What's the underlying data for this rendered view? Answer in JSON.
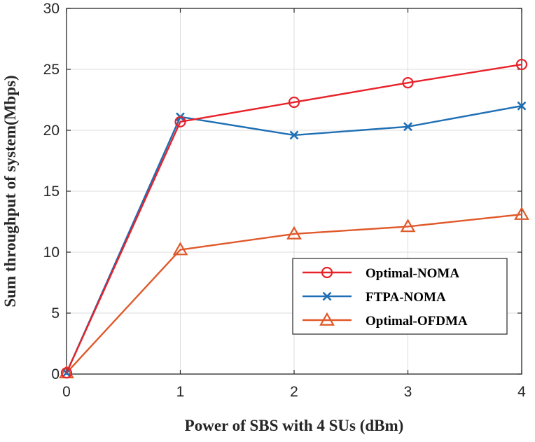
{
  "chart_data": {
    "type": "line",
    "title": "",
    "xlabel": "Power of SBS with 4 SUs (dBm)",
    "ylabel": "Sum throughput of system(Mbps)",
    "x": [
      0,
      1,
      2,
      3,
      4
    ],
    "xlim": [
      0,
      4
    ],
    "ylim": [
      0,
      30
    ],
    "xticks": [
      "0",
      "1",
      "2",
      "3",
      "4"
    ],
    "yticks": [
      "0",
      "5",
      "10",
      "15",
      "20",
      "25",
      "30"
    ],
    "grid": true,
    "legend_position": "lower-right",
    "series": [
      {
        "name": "Optimal-NOMA",
        "color": "#e8222a",
        "marker": "circle",
        "values": [
          0.1,
          20.7,
          22.3,
          23.9,
          25.4
        ]
      },
      {
        "name": "FTPA-NOMA",
        "color": "#1f6fb5",
        "marker": "x",
        "values": [
          0.1,
          21.1,
          19.6,
          20.3,
          22.0
        ]
      },
      {
        "name": "Optimal-OFDMA",
        "color": "#e0592a",
        "marker": "triangle",
        "values": [
          0.1,
          10.2,
          11.5,
          12.1,
          13.1
        ]
      }
    ]
  }
}
